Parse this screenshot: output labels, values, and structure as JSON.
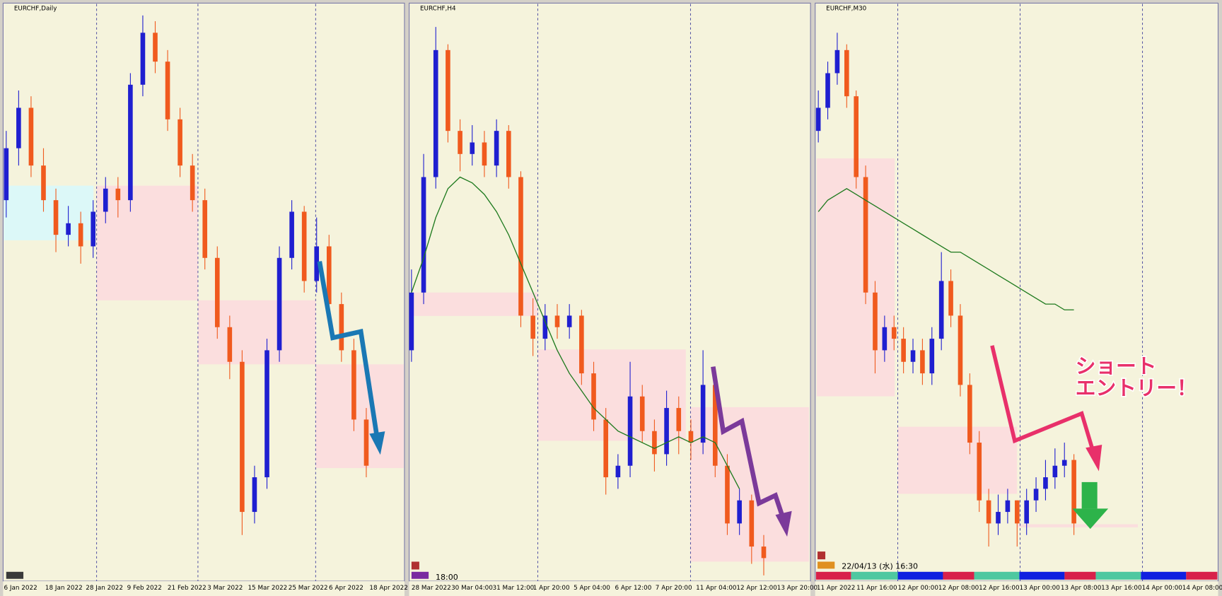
{
  "panels": [
    {
      "title": "EURCHF,Daily",
      "ylim": [
        0,
        100
      ],
      "open": [
        66,
        75,
        82,
        72,
        66,
        60,
        62,
        58,
        64,
        68,
        66,
        86,
        95,
        90,
        80,
        72,
        66,
        56,
        44,
        38,
        12,
        18,
        40,
        56,
        64,
        52,
        58,
        48,
        40,
        28
      ],
      "high": [
        78,
        85,
        84,
        75,
        68,
        65,
        64,
        66,
        70,
        70,
        88,
        98,
        97,
        92,
        82,
        74,
        68,
        58,
        46,
        40,
        20,
        42,
        58,
        66,
        65,
        63,
        60,
        50,
        42,
        30
      ],
      "low": [
        63,
        72,
        70,
        64,
        57,
        58,
        55,
        56,
        62,
        63,
        64,
        84,
        88,
        78,
        70,
        64,
        54,
        42,
        35,
        8,
        10,
        16,
        38,
        54,
        50,
        50,
        46,
        38,
        26,
        18
      ],
      "close": [
        75,
        82,
        72,
        66,
        60,
        62,
        58,
        64,
        68,
        66,
        86,
        95,
        90,
        80,
        72,
        66,
        56,
        44,
        38,
        12,
        18,
        40,
        56,
        64,
        52,
        58,
        48,
        40,
        28,
        20
      ],
      "xlabels": [
        "6 Jan 2022",
        "18 Jan 2022",
        "28 Jan 2022",
        "9 Feb 2022",
        "21 Feb 2022",
        "3 Mar 2022",
        "15 Mar 2022",
        "25 Mar 2022",
        "6 Apr 2022",
        "18 Apr 2022"
      ]
    },
    {
      "title": "EURCHF,H4",
      "ylim": [
        0,
        100
      ],
      "open": [
        40,
        50,
        70,
        92,
        78,
        74,
        76,
        72,
        78,
        70,
        46,
        42,
        46,
        44,
        46,
        36,
        28,
        18,
        20,
        32,
        26,
        22,
        30,
        26,
        24,
        34,
        20,
        10,
        14,
        6
      ],
      "high": [
        54,
        74,
        96,
        93,
        80,
        79,
        78,
        80,
        79,
        71,
        49,
        48,
        48,
        48,
        47,
        38,
        30,
        22,
        38,
        34,
        28,
        33,
        32,
        28,
        40,
        35,
        22,
        16,
        15,
        8
      ],
      "low": [
        38,
        48,
        68,
        76,
        71,
        72,
        70,
        70,
        68,
        44,
        39,
        40,
        42,
        42,
        34,
        26,
        15,
        16,
        18,
        24,
        19,
        20,
        22,
        21,
        22,
        18,
        8,
        8,
        3,
        1
      ],
      "close": [
        50,
        70,
        92,
        78,
        74,
        76,
        72,
        78,
        70,
        46,
        42,
        46,
        44,
        46,
        36,
        28,
        18,
        20,
        32,
        26,
        22,
        30,
        26,
        24,
        34,
        20,
        10,
        14,
        6,
        4
      ],
      "ma": [
        50,
        56,
        63,
        68,
        70,
        69,
        67,
        64,
        60,
        55,
        50,
        45,
        40,
        36,
        33,
        30,
        28,
        26,
        25,
        24,
        23,
        24,
        25,
        24,
        25,
        24,
        20,
        16,
        null,
        null
      ],
      "time": "18:00",
      "xlabels": [
        "28 Mar 2022",
        "30 Mar 04:00",
        "31 Mar 12:00",
        "1 Apr 20:00",
        "5 Apr 04:00",
        "6 Apr 12:00",
        "7 Apr 20:00",
        "11 Apr 04:00",
        "12 Apr 12:00",
        "13 Apr 20:00"
      ]
    },
    {
      "title": "EURCHF,M30",
      "ylim": [
        0,
        100
      ],
      "open": [
        78,
        82,
        88,
        92,
        84,
        70,
        50,
        40,
        44,
        42,
        38,
        40,
        36,
        42,
        52,
        46,
        34,
        24,
        14,
        10,
        12,
        14,
        10,
        14,
        16,
        18,
        20,
        21
      ],
      "high": [
        85,
        90,
        95,
        93,
        85,
        72,
        52,
        46,
        46,
        44,
        42,
        42,
        44,
        57,
        54,
        48,
        36,
        26,
        16,
        15,
        16,
        14,
        16,
        18,
        21,
        23,
        24,
        22
      ],
      "low": [
        76,
        80,
        86,
        82,
        68,
        48,
        36,
        38,
        40,
        36,
        36,
        34,
        34,
        40,
        44,
        32,
        22,
        12,
        6,
        8,
        10,
        6,
        8,
        12,
        14,
        16,
        18,
        8
      ],
      "close": [
        82,
        88,
        92,
        84,
        70,
        50,
        40,
        44,
        42,
        38,
        40,
        36,
        42,
        52,
        46,
        34,
        24,
        14,
        10,
        12,
        14,
        10,
        14,
        16,
        18,
        20,
        21,
        10
      ],
      "ma": [
        64,
        66,
        67,
        68,
        67,
        66,
        65,
        64,
        63,
        62,
        61,
        60,
        59,
        58,
        57,
        57,
        56,
        55,
        54,
        53,
        52,
        51,
        50,
        49,
        48,
        48,
        47,
        47
      ],
      "time": "22/04/13 (水) 16:30",
      "annotation": [
        "ショート",
        "エントリー！"
      ],
      "xlabels": [
        "11 Apr 2022",
        "11 Apr 16:00",
        "12 Apr 00:00",
        "12 Apr 08:00",
        "12 Apr 16:00",
        "13 Apr 00:00",
        "13 Apr 08:00",
        "13 Apr 16:00",
        "14 Apr 00:00",
        "14 Apr 08:00"
      ]
    }
  ]
}
